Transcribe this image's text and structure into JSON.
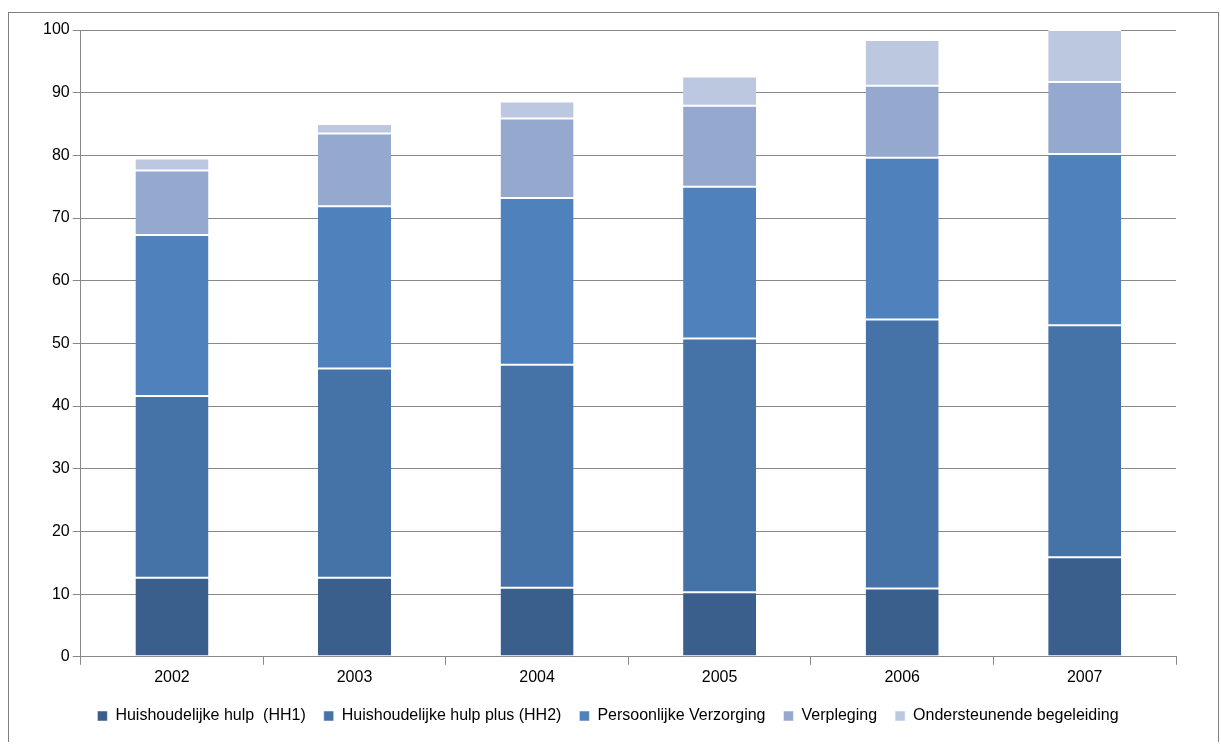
{
  "chart_data": {
    "type": "bar",
    "stacked": true,
    "categories": [
      "2002",
      "2003",
      "2004",
      "2005",
      "2006",
      "2007"
    ],
    "series": [
      {
        "name": "Huishoudelijke hulp  (HH1)",
        "color": "#3a5f8d",
        "values": [
          12.6,
          12.6,
          11.0,
          10.3,
          10.9,
          15.9
        ]
      },
      {
        "name": "Huishoudelijke hulp plus (HH2)",
        "color": "#4572a7",
        "values": [
          29.0,
          33.4,
          35.6,
          40.5,
          42.9,
          37.0
        ]
      },
      {
        "name": "Persoonlijke Verzorging",
        "color": "#4f81bd",
        "values": [
          25.7,
          25.9,
          26.6,
          24.2,
          25.8,
          27.3
        ]
      },
      {
        "name": "Verpleging",
        "color": "#95a9cf",
        "values": [
          10.3,
          11.6,
          12.7,
          12.9,
          11.5,
          11.5
        ]
      },
      {
        "name": "Ondersteunende begeleiding",
        "color": "#bbc8e0",
        "values": [
          1.9,
          1.5,
          2.7,
          4.7,
          7.3,
          8.3
        ]
      }
    ],
    "ylim": [
      0,
      100
    ],
    "yticks": [
      0,
      10,
      20,
      30,
      40,
      50,
      60,
      70,
      80,
      90,
      100
    ],
    "grid": "y",
    "legend": "bottom"
  }
}
